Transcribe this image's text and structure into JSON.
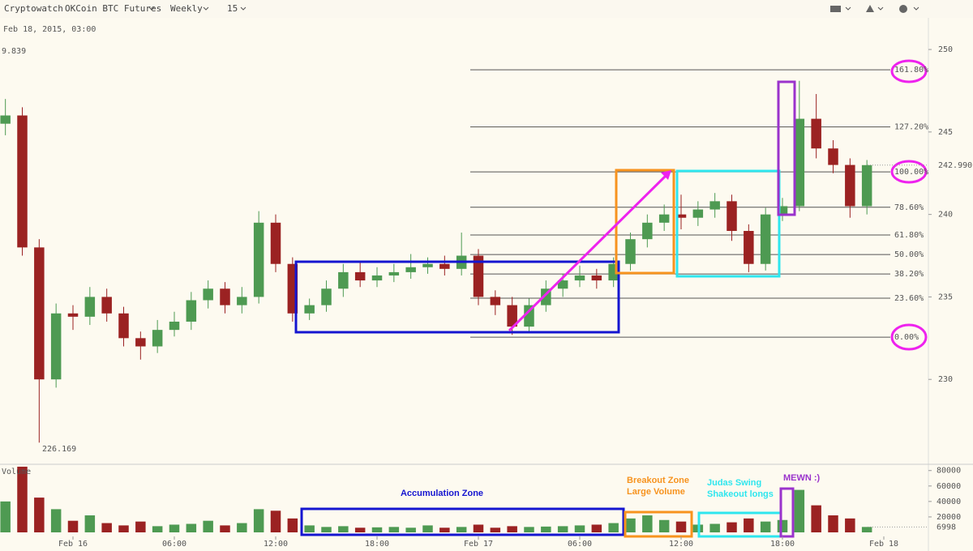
{
  "header": {
    "brand": "Cryptowatch",
    "market": "OKCoin BTC Futures",
    "period": "Weekly",
    "interval": "15"
  },
  "info": {
    "timestamp": "Feb 18, 2015, 03:00",
    "value_fragment": "9.839"
  },
  "annotations": {
    "accumulation": "Accumulation Zone",
    "breakout": "Breakout Zone",
    "large_volume": "Large Volume",
    "judas": "Judas Swing",
    "shakeout": "Shakeout longs",
    "mewn": "MEWN :)"
  },
  "chart_data": {
    "type": "candlestick",
    "categories": [
      null,
      null,
      null,
      null,
      null,
      null,
      null,
      null,
      null,
      null,
      null,
      null,
      null,
      null,
      null,
      null,
      null,
      null,
      null,
      null,
      null,
      null,
      null,
      null,
      null,
      null,
      null,
      null,
      null,
      null,
      null,
      null,
      null,
      null,
      null,
      null,
      null,
      null,
      null,
      null,
      null,
      null,
      null,
      null,
      null,
      null,
      null,
      null,
      null,
      null,
      null,
      null
    ],
    "open": [
      245.5,
      246.0,
      238.0,
      230.0,
      234.0,
      233.8,
      235.0,
      234.0,
      232.5,
      232.0,
      233.0,
      233.5,
      234.8,
      235.5,
      234.5,
      235.0,
      239.5,
      237.0,
      234.0,
      234.5,
      235.5,
      236.5,
      236.0,
      236.3,
      236.5,
      236.8,
      237.0,
      236.7,
      237.5,
      235.0,
      234.5,
      233.2,
      234.5,
      235.5,
      236.0,
      236.3,
      236.0,
      237.0,
      238.5,
      239.5,
      240.0,
      239.8,
      240.3,
      240.8,
      239.0,
      237.0,
      240.0,
      240.5,
      245.8,
      244.0,
      243.0,
      240.5
    ],
    "high": [
      247.0,
      246.5,
      238.5,
      234.6,
      234.5,
      235.6,
      235.5,
      234.4,
      232.9,
      233.6,
      234.1,
      235.3,
      236.0,
      235.9,
      235.6,
      240.2,
      240.0,
      237.4,
      234.9,
      236.0,
      237.0,
      237.2,
      236.8,
      237.0,
      237.6,
      237.4,
      237.5,
      238.9,
      237.9,
      235.4,
      235.0,
      234.9,
      236.0,
      236.4,
      236.9,
      236.7,
      237.4,
      238.9,
      240.0,
      240.6,
      241.2,
      240.8,
      241.3,
      241.2,
      239.4,
      240.4,
      241.0,
      248.1,
      247.3,
      244.5,
      243.4,
      243.3
    ],
    "low": [
      244.8,
      237.5,
      226.169,
      229.5,
      233.0,
      233.3,
      233.5,
      232.0,
      231.2,
      231.6,
      232.6,
      233.0,
      234.3,
      234.0,
      234.0,
      234.6,
      236.5,
      233.5,
      233.6,
      234.1,
      235.0,
      235.6,
      235.6,
      235.9,
      236.1,
      236.4,
      236.3,
      236.3,
      234.5,
      233.9,
      232.7,
      232.9,
      234.1,
      235.0,
      235.6,
      235.5,
      235.6,
      236.6,
      238.0,
      239.0,
      239.1,
      239.3,
      239.8,
      238.4,
      236.5,
      236.6,
      239.6,
      240.2,
      243.4,
      242.5,
      239.8,
      240.0
    ],
    "close": [
      246.0,
      238.0,
      230.0,
      234.0,
      233.8,
      235.0,
      234.0,
      232.5,
      232.0,
      233.0,
      233.5,
      234.8,
      235.5,
      234.5,
      235.0,
      239.5,
      237.0,
      234.0,
      234.5,
      235.5,
      236.5,
      236.0,
      236.3,
      236.5,
      236.8,
      237.0,
      236.7,
      237.5,
      235.0,
      234.5,
      233.2,
      234.5,
      235.5,
      236.0,
      236.3,
      236.0,
      237.0,
      238.5,
      239.5,
      240.0,
      239.8,
      240.3,
      240.8,
      239.0,
      237.0,
      240.0,
      240.5,
      245.8,
      244.0,
      243.0,
      240.5,
      242.99
    ],
    "volume": [
      40000,
      85000,
      45000,
      30000,
      15000,
      22000,
      12000,
      9000,
      14000,
      8000,
      10000,
      11000,
      15000,
      9000,
      12000,
      30000,
      28000,
      18000,
      9000,
      7000,
      8000,
      6000,
      6500,
      7000,
      6000,
      9000,
      6000,
      7000,
      10000,
      6000,
      8000,
      7000,
      7500,
      8000,
      9000,
      10000,
      12000,
      18000,
      22000,
      16000,
      14000,
      10000,
      11000,
      13000,
      18000,
      14000,
      16000,
      55000,
      35000,
      22000,
      18000,
      6998
    ],
    "up_color": "#4e9a52",
    "down_color": "#9b2222",
    "xlim": [
      -0.32,
      54.64
    ],
    "xticks": [
      {
        "value": 4,
        "label": "Feb 16"
      },
      {
        "value": 10,
        "label": "06:00"
      },
      {
        "value": 16,
        "label": "12:00"
      },
      {
        "value": 22,
        "label": "18:00"
      },
      {
        "value": 28,
        "label": "Feb 17"
      },
      {
        "value": 34,
        "label": "06:00"
      },
      {
        "value": 40,
        "label": "12:00"
      },
      {
        "value": 46,
        "label": "18:00"
      },
      {
        "value": 52,
        "label": "Feb 18"
      }
    ],
    "ylim": [
      225,
      253
    ],
    "yticks": [
      230,
      235,
      240,
      245,
      250
    ],
    "current_price": {
      "value": 242.99,
      "label": "242.990"
    },
    "low_marker": 226.169,
    "volume_label": "Volume",
    "volume_ylim": [
      0,
      86000
    ],
    "volume_ticks": [
      20000,
      40000,
      60000,
      80000
    ],
    "current_volume": 6998,
    "fib": {
      "low": 232.56,
      "high": 242.58,
      "levels": [
        {
          "value": 161.8,
          "label": "161.80%"
        },
        {
          "value": 127.2,
          "label": "127.20%"
        },
        {
          "value": 100,
          "label": "100.00%"
        },
        {
          "value": 78.6,
          "label": "78.60%"
        },
        {
          "value": 61.8,
          "label": "61.80%"
        },
        {
          "value": 50,
          "label": "50.00%"
        },
        {
          "value": 38.2,
          "label": "38.20%"
        },
        {
          "value": 23.6,
          "label": "23.60%"
        },
        {
          "value": 0,
          "label": "0.00%"
        }
      ]
    }
  }
}
